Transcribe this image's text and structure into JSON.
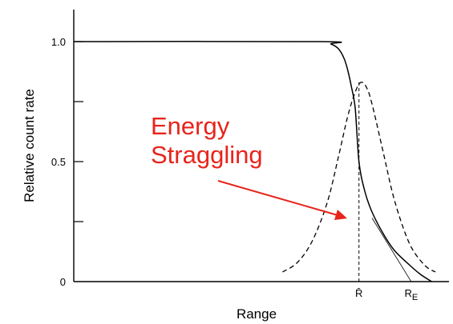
{
  "chart_data": {
    "type": "line",
    "title": "",
    "xlabel": "Range",
    "ylabel": "Relative count rate",
    "ylim": [
      0,
      1.05
    ],
    "xlim": [
      0,
      1
    ],
    "y_ticks": [
      0,
      0.25,
      0.5,
      0.75,
      1.0
    ],
    "y_tick_labels": [
      "0",
      "",
      "0.5",
      "",
      "1.0"
    ],
    "x_markers": [
      {
        "label": "R̄",
        "x": 0.765
      },
      {
        "label": "R_E",
        "x": 0.905
      }
    ],
    "series": [
      {
        "style": "solid",
        "x": [
          0,
          0.66,
          0.69,
          0.71,
          0.725,
          0.735,
          0.745,
          0.755,
          0.765,
          0.78,
          0.8,
          0.83,
          0.86,
          0.9,
          0.93,
          0.96
        ],
        "values": [
          1.0,
          1.0,
          0.99,
          0.97,
          0.93,
          0.88,
          0.81,
          0.72,
          0.5,
          0.38,
          0.29,
          0.2,
          0.13,
          0.07,
          0.03,
          0.0
        ]
      },
      {
        "style": "dashed",
        "x": [
          0.56,
          0.6,
          0.64,
          0.68,
          0.71,
          0.735,
          0.755,
          0.77,
          0.785,
          0.8,
          0.83,
          0.86,
          0.9,
          0.94,
          0.97
        ],
        "values": [
          0.04,
          0.08,
          0.17,
          0.33,
          0.52,
          0.69,
          0.79,
          0.83,
          0.81,
          0.74,
          0.54,
          0.34,
          0.16,
          0.07,
          0.04
        ]
      }
    ],
    "annotations": [
      {
        "line1": "Energy",
        "line2": "Straggling",
        "color": "#e8241b"
      }
    ]
  },
  "colors": {
    "axis": "#000000",
    "annotation": "#e8241b",
    "background": "#ffffff"
  }
}
